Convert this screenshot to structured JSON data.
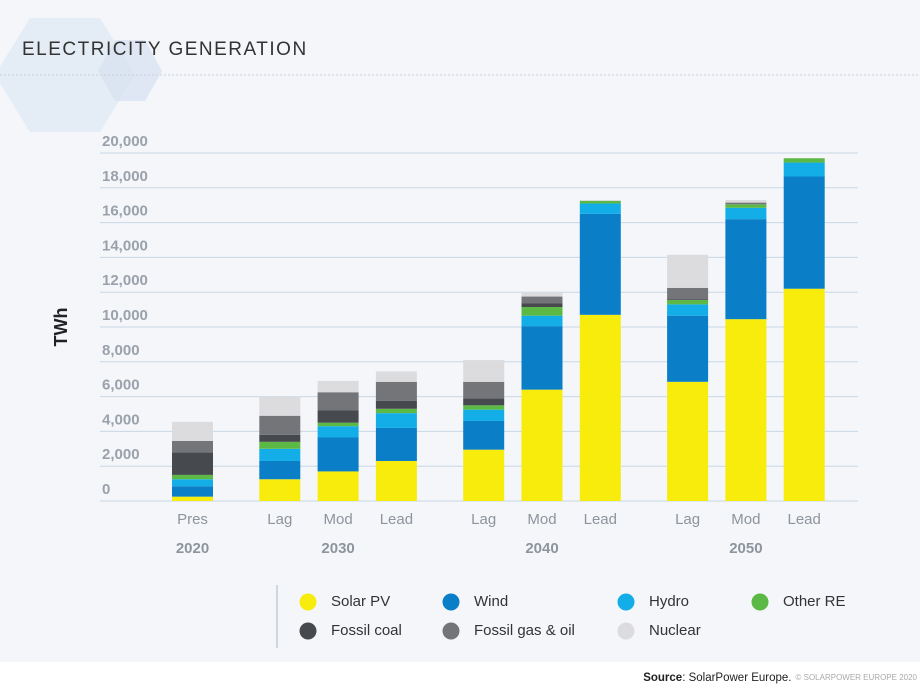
{
  "chart_data": {
    "type": "stacked-bar",
    "title": "ELECTRICITY GENERATION",
    "y_label": "TWh",
    "groups": [
      {
        "name": "2020",
        "categories": [
          "Pres"
        ]
      },
      {
        "name": "2030",
        "categories": [
          "Lag",
          "Mod",
          "Lead"
        ]
      },
      {
        "name": "2040",
        "categories": [
          "Lag",
          "Mod",
          "Lead"
        ]
      },
      {
        "name": "2050",
        "categories": [
          "Lag",
          "Mod",
          "Lead"
        ]
      }
    ],
    "series": [
      {
        "name": "Solar PV",
        "color": "#f7ec0c",
        "values": [
          250,
          1250,
          1700,
          2300,
          2950,
          6400,
          10700,
          6850,
          10450,
          12200
        ]
      },
      {
        "name": "Wind",
        "color": "#0a7fc8",
        "values": [
          600,
          1050,
          1950,
          1900,
          1650,
          3650,
          5800,
          3800,
          5750,
          6450
        ]
      },
      {
        "name": "Hydro",
        "color": "#13aee8",
        "values": [
          400,
          700,
          650,
          850,
          650,
          600,
          600,
          650,
          650,
          800
        ]
      },
      {
        "name": "Other RE",
        "color": "#5cb946",
        "values": [
          250,
          400,
          200,
          250,
          250,
          500,
          150,
          250,
          200,
          250
        ]
      },
      {
        "name": "Fossil coal",
        "color": "#46494e",
        "values": [
          1300,
          400,
          700,
          450,
          400,
          200,
          0,
          50,
          0,
          0
        ]
      },
      {
        "name": "Fossil gas & oil",
        "color": "#737579",
        "values": [
          650,
          1100,
          1050,
          1100,
          950,
          400,
          0,
          650,
          100,
          0
        ]
      },
      {
        "name": "Nuclear",
        "color": "#dcdcde",
        "values": [
          1100,
          1100,
          650,
          600,
          1250,
          250,
          50,
          1900,
          150,
          0
        ]
      }
    ],
    "ylim": [
      0,
      20000
    ],
    "yticks": [
      0,
      {
        "value": 2000,
        "label": "2,000"
      },
      {
        "value": 4000,
        "label": "4,000"
      },
      {
        "value": 6000,
        "label": "6,000"
      },
      {
        "value": 8000,
        "label": "8,000"
      },
      {
        "value": 10000,
        "label": "10,000"
      },
      {
        "value": 12000,
        "label": "12,000"
      },
      {
        "value": 14000,
        "label": "14,000"
      },
      {
        "value": 16000,
        "label": "16,000"
      },
      {
        "value": 18000,
        "label": "18,000"
      },
      {
        "value": 20000,
        "label": "20,000"
      }
    ],
    "grid": true,
    "source": {
      "label": "Source",
      "text": ": SolarPower Europe.",
      "copyright": "© SOLARPOWER EUROPE 2020"
    }
  }
}
